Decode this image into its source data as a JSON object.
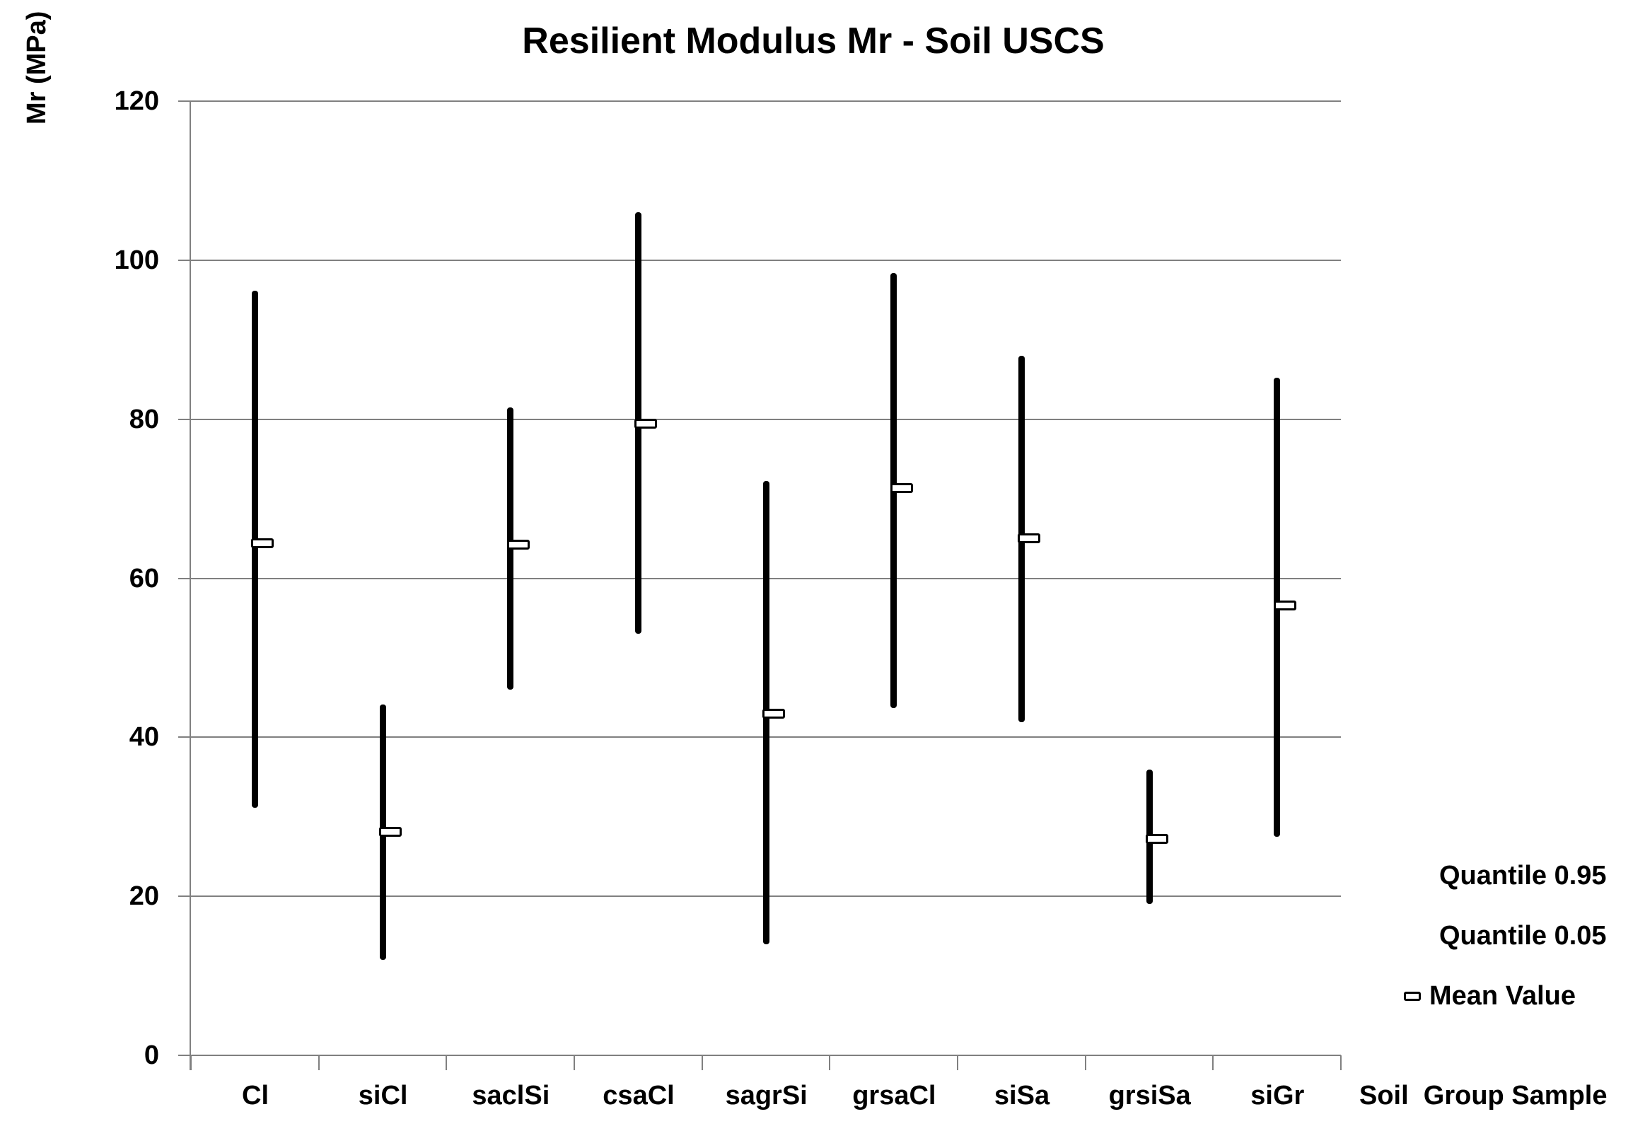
{
  "title": "Resilient Modulus Mr - Soil USCS",
  "y_axis_title": "Mr (MPa)",
  "x_axis_title": "Soil  Group Sample",
  "legend": {
    "quantile_high_label": "Quantile 0.95",
    "quantile_low_label": "Quantile 0.05",
    "mean_label": "Mean Value"
  },
  "colors": {
    "background": "#ffffff",
    "text": "#000000",
    "gridline": "#808080",
    "axis": "#808080",
    "bar": "#000000",
    "marker_fill": "#ffffff",
    "marker_border": "#000000"
  },
  "chart_data": {
    "type": "bar",
    "subtype": "vertical-range-bars-with-mean-marker",
    "title": "Resilient Modulus Mr - Soil USCS",
    "xlabel": "Soil Group Sample",
    "ylabel": "Mr (MPa)",
    "ylim": [
      0,
      120
    ],
    "yticks": [
      0,
      20,
      40,
      60,
      80,
      100,
      120
    ],
    "grid": true,
    "legend_position": "right",
    "categories": [
      "Cl",
      "siCl",
      "saclSi",
      "csaCl",
      "sagrSi",
      "grsaCl",
      "siSa",
      "grsiSa",
      "siGr"
    ],
    "series": [
      {
        "name": "Quantile 0.95",
        "values": [
          96.2,
          44.1,
          81.5,
          106.0,
          72.2,
          98.4,
          88.0,
          35.9,
          85.2
        ]
      },
      {
        "name": "Quantile 0.05",
        "values": [
          31.1,
          12.0,
          46.0,
          53.0,
          14.0,
          43.7,
          41.9,
          19.0,
          27.5
        ]
      },
      {
        "name": "Mean Value",
        "values": [
          64.4,
          28.1,
          64.2,
          79.4,
          43.0,
          71.3,
          65.0,
          27.2,
          56.6
        ]
      }
    ]
  }
}
